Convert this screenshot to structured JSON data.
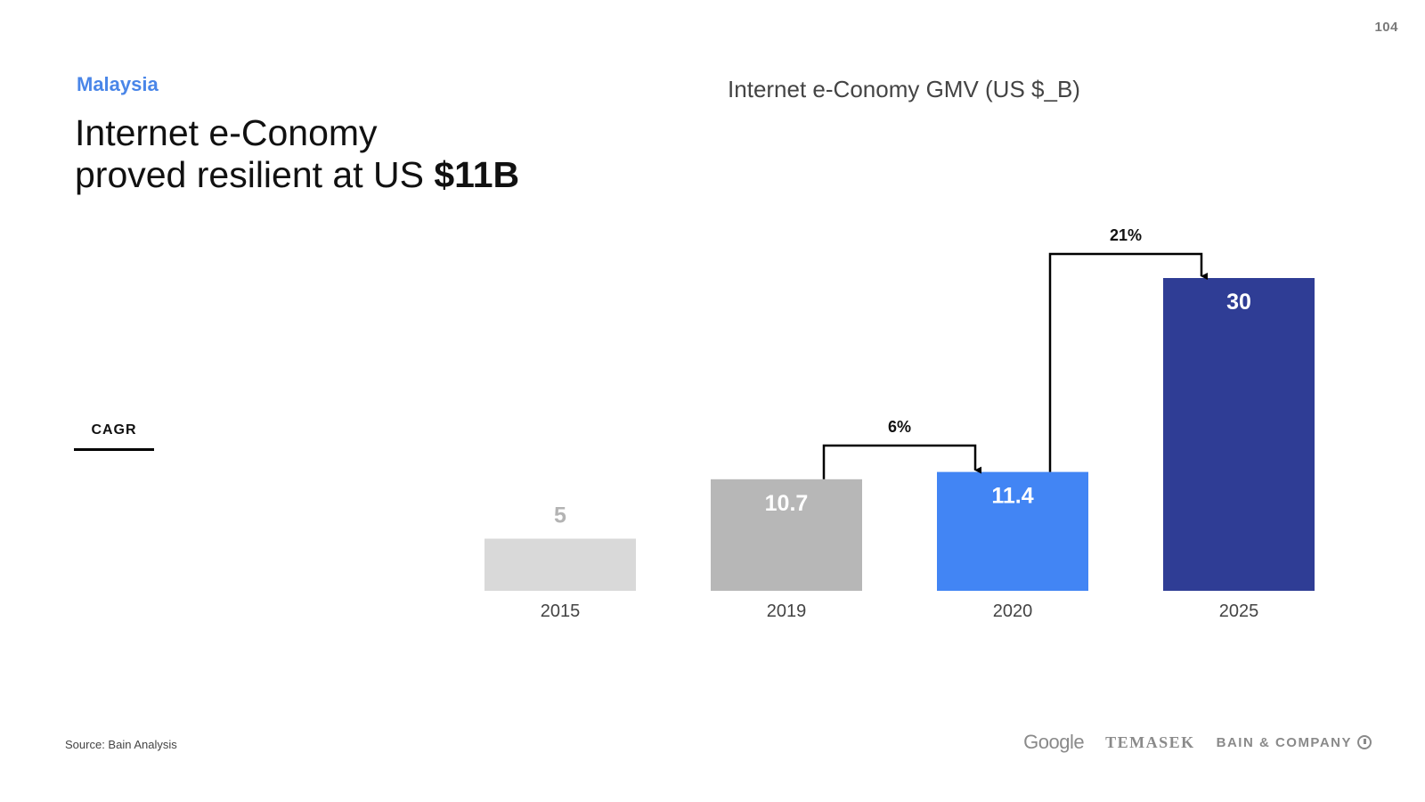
{
  "page": {
    "number": "104",
    "country": "Malaysia",
    "headline_line1": "Internet e-Conomy",
    "headline_line2_prefix": "proved resilient at US ",
    "headline_line2_bold": "$11B",
    "cagr_label": "CAGR"
  },
  "footer": {
    "source": "Source: Bain Analysis",
    "logos": [
      "Google",
      "TEMASEK",
      "BAIN & COMPANY"
    ]
  },
  "colors": {
    "bar_2015": "#d9d9d9",
    "bar_2019": "#b7b7b7",
    "bar_2020": "#4285f4",
    "bar_2025": "#2f3d95",
    "label_light": "#b3b3b3",
    "label_dark": "#ffffff",
    "accent": "#4a86e8"
  },
  "chart_data": {
    "type": "bar",
    "title": "Internet e-Conomy GMV (US $_B)",
    "categories": [
      "2015",
      "2019",
      "2020",
      "2025"
    ],
    "values": [
      5,
      10.7,
      11.4,
      30
    ],
    "value_labels": [
      "5",
      "10.7",
      "11.4",
      "30"
    ],
    "xlabel": "",
    "ylabel": "",
    "ylim": [
      0,
      30
    ],
    "grid": false,
    "legend": "none",
    "annotations": [
      {
        "type": "cagr",
        "from": "2019",
        "to": "2020",
        "label": "6%"
      },
      {
        "type": "cagr",
        "from": "2020",
        "to": "2025",
        "label": "21%"
      }
    ]
  }
}
